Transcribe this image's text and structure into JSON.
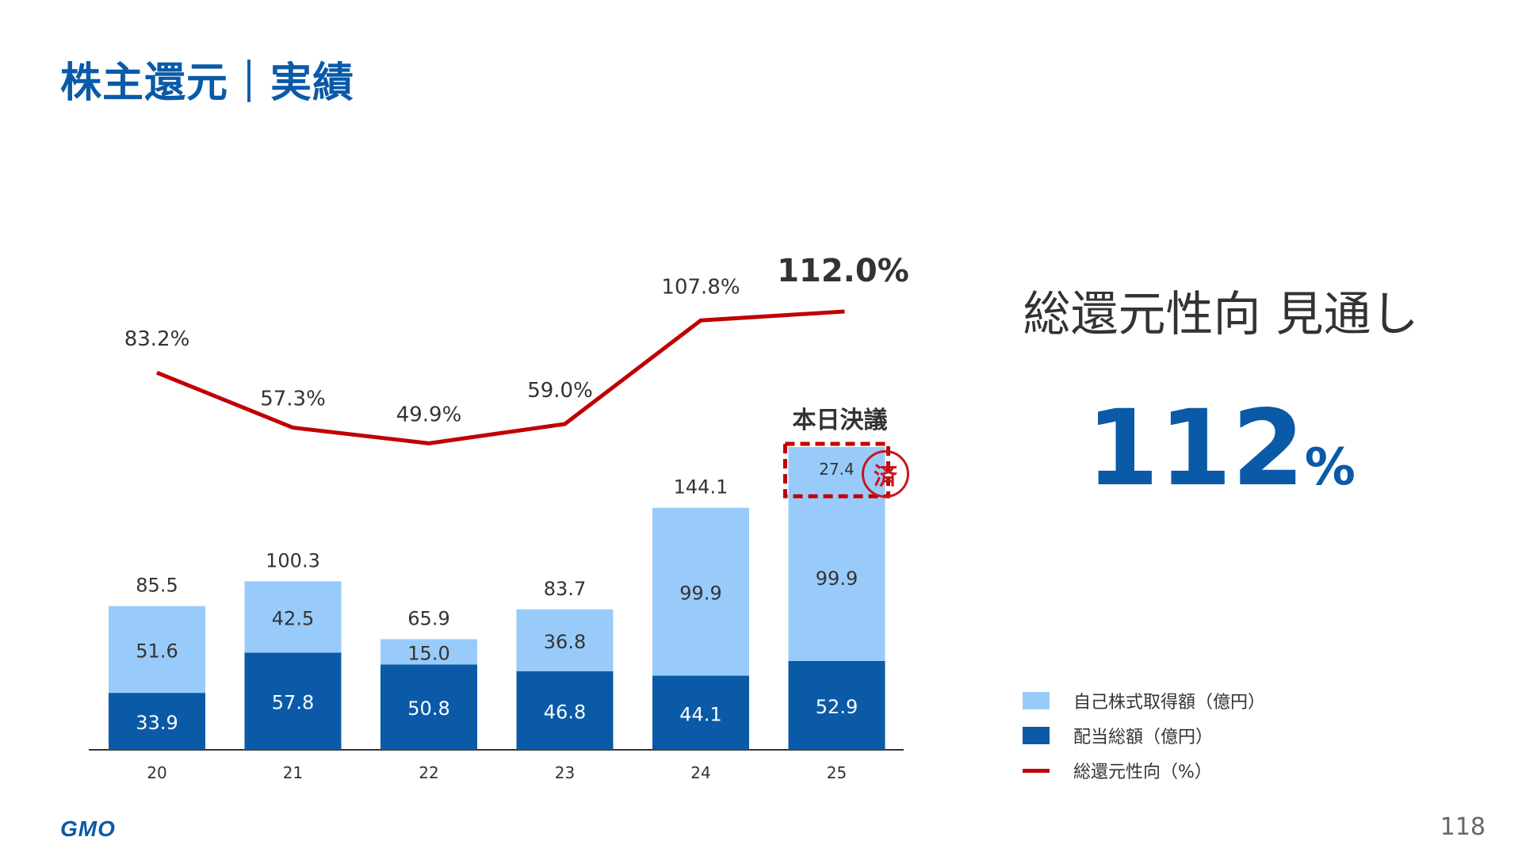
{
  "title": "株主還元｜実績",
  "outlook": {
    "label": "総還元性向 見通し",
    "value": "112",
    "unit": "%"
  },
  "legend": [
    {
      "label": "自己株式取得額（億円）",
      "color": "#99cbfa"
    },
    {
      "label": "配当総額（億円）",
      "color": "#0a5aa8"
    },
    {
      "label": "総還元性向（%）",
      "color": "#c00000"
    }
  ],
  "logo": "GMO",
  "page_number": "118",
  "annotation": {
    "resolved_today": "本日決議",
    "done_badge": "済"
  },
  "chart_data": {
    "type": "bar",
    "stacked": true,
    "categories": [
      "20",
      "21",
      "22",
      "23",
      "24",
      "25"
    ],
    "series": [
      {
        "name": "配当総額（億円）",
        "values": [
          33.9,
          57.8,
          50.8,
          46.8,
          44.1,
          52.9
        ],
        "color": "#0a5aa8",
        "labels": [
          "33.9",
          "57.8",
          "50.8",
          "46.8",
          "44.1",
          "52.9"
        ]
      },
      {
        "name": "自己株式取得額（億円）",
        "values": [
          51.6,
          42.5,
          15.0,
          36.8,
          99.9,
          99.9
        ],
        "color": "#99cbfa",
        "labels": [
          "51.6",
          "42.5",
          "15.0",
          "36.8",
          "99.9",
          "99.9"
        ]
      },
      {
        "name": "自己株式取得額（億円）",
        "values": [
          0,
          0,
          0,
          0,
          0,
          27.4
        ],
        "color": "#99cbfa",
        "labels": [
          "",
          "",
          "",
          "",
          "",
          "27.4"
        ]
      }
    ],
    "totals": [
      85.5,
      100.3,
      65.9,
      83.7,
      144.1,
      null
    ],
    "total_labels": [
      "85.5",
      "100.3",
      "65.9",
      "83.7",
      "144.1",
      ""
    ],
    "line": {
      "name": "総還元性向（%）",
      "values": [
        83.2,
        57.3,
        49.9,
        59.0,
        107.8,
        112.0
      ],
      "labels": [
        "83.2%",
        "57.3%",
        "49.9%",
        "59.0%",
        "107.8%",
        "112.0%"
      ],
      "color": "#c00000"
    },
    "ylim": [
      0,
      190
    ],
    "line_ylim": [
      0,
      140
    ],
    "grid": false,
    "legend_position": "bottom-right"
  }
}
